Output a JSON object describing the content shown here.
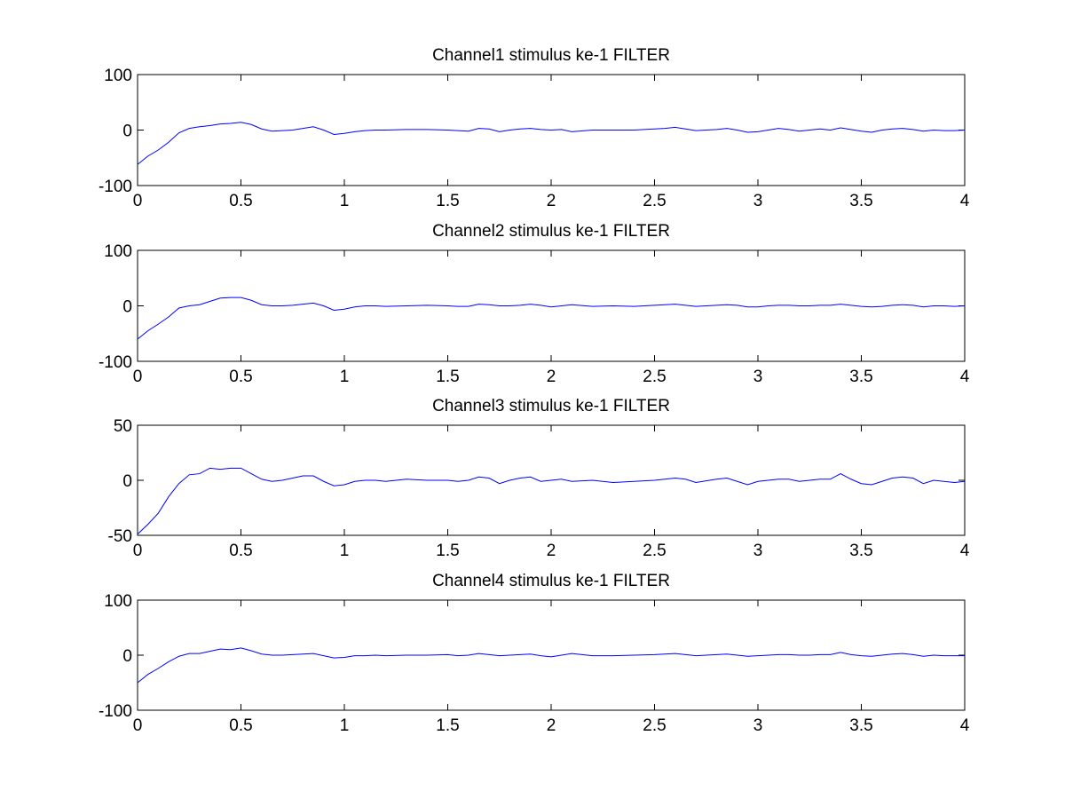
{
  "figure": {
    "background_color": "#ffffff"
  },
  "chart_data": [
    {
      "type": "line",
      "title": "Channel1 stimulus ke-1 FILTER",
      "xlabel": "",
      "ylabel": "",
      "xlim": [
        0,
        4
      ],
      "ylim": [
        -100,
        100
      ],
      "xticks": [
        0,
        0.5,
        1,
        1.5,
        2,
        2.5,
        3,
        3.5,
        4
      ],
      "xtick_labels": [
        "0",
        "0.5",
        "1",
        "1.5",
        "2",
        "2.5",
        "3",
        "3.5",
        "4"
      ],
      "yticks": [
        -100,
        0,
        100
      ],
      "ytick_labels": [
        "-100",
        "0",
        "100"
      ],
      "grid": false,
      "series": [
        {
          "color": "#0000ff",
          "x": [
            0,
            0.05,
            0.1,
            0.15,
            0.2,
            0.25,
            0.3,
            0.35,
            0.4,
            0.45,
            0.5,
            0.55,
            0.6,
            0.65,
            0.7,
            0.75,
            0.8,
            0.85,
            0.9,
            0.95,
            1.0,
            1.05,
            1.1,
            1.15,
            1.2,
            1.3,
            1.4,
            1.5,
            1.55,
            1.6,
            1.65,
            1.7,
            1.75,
            1.8,
            1.85,
            1.9,
            1.95,
            2.0,
            2.05,
            2.1,
            2.2,
            2.3,
            2.4,
            2.5,
            2.55,
            2.6,
            2.65,
            2.7,
            2.8,
            2.85,
            2.9,
            2.95,
            3.0,
            3.05,
            3.1,
            3.15,
            3.2,
            3.25,
            3.3,
            3.35,
            3.4,
            3.45,
            3.5,
            3.55,
            3.6,
            3.65,
            3.7,
            3.75,
            3.8,
            3.85,
            3.9,
            3.95,
            4.0
          ],
          "y": [
            -62,
            -47,
            -36,
            -22,
            -5,
            3,
            6,
            8,
            11,
            12,
            14,
            10,
            2,
            -2,
            -1,
            0,
            3,
            6,
            0,
            -8,
            -6,
            -3,
            -1,
            0,
            0,
            1,
            1,
            0,
            -1,
            -2,
            3,
            2,
            -3,
            0,
            2,
            3,
            1,
            0,
            1,
            -3,
            0,
            0,
            0,
            2,
            3,
            5,
            2,
            -1,
            1,
            3,
            0,
            -4,
            -3,
            0,
            3,
            1,
            -2,
            0,
            2,
            0,
            4,
            1,
            -2,
            -4,
            0,
            2,
            3,
            1,
            -2,
            0,
            -1,
            -1,
            0
          ]
        }
      ]
    },
    {
      "type": "line",
      "title": "Channel2 stimulus ke-1 FILTER",
      "xlabel": "",
      "ylabel": "",
      "xlim": [
        0,
        4
      ],
      "ylim": [
        -100,
        100
      ],
      "xticks": [
        0,
        0.5,
        1,
        1.5,
        2,
        2.5,
        3,
        3.5,
        4
      ],
      "xtick_labels": [
        "0",
        "0.5",
        "1",
        "1.5",
        "2",
        "2.5",
        "3",
        "3.5",
        "4"
      ],
      "yticks": [
        -100,
        0,
        100
      ],
      "ytick_labels": [
        "-100",
        "0",
        "100"
      ],
      "grid": false,
      "series": [
        {
          "color": "#0000ff",
          "x": [
            0,
            0.05,
            0.1,
            0.15,
            0.2,
            0.25,
            0.3,
            0.35,
            0.4,
            0.45,
            0.5,
            0.55,
            0.6,
            0.65,
            0.7,
            0.75,
            0.8,
            0.85,
            0.9,
            0.95,
            1.0,
            1.05,
            1.1,
            1.15,
            1.2,
            1.3,
            1.4,
            1.5,
            1.55,
            1.6,
            1.65,
            1.7,
            1.75,
            1.8,
            1.85,
            1.9,
            1.95,
            2.0,
            2.05,
            2.1,
            2.2,
            2.3,
            2.4,
            2.5,
            2.55,
            2.6,
            2.65,
            2.7,
            2.8,
            2.85,
            2.9,
            2.95,
            3.0,
            3.05,
            3.1,
            3.15,
            3.2,
            3.25,
            3.3,
            3.35,
            3.4,
            3.45,
            3.5,
            3.55,
            3.6,
            3.65,
            3.7,
            3.75,
            3.8,
            3.85,
            3.9,
            3.95,
            4.0
          ],
          "y": [
            -60,
            -45,
            -33,
            -20,
            -4,
            0,
            2,
            8,
            14,
            15,
            15,
            10,
            2,
            0,
            0,
            1,
            3,
            5,
            0,
            -8,
            -6,
            -2,
            0,
            0,
            -1,
            0,
            1,
            0,
            -1,
            -1,
            3,
            2,
            0,
            0,
            1,
            3,
            1,
            -2,
            0,
            2,
            -1,
            0,
            -1,
            1,
            2,
            3,
            1,
            -1,
            1,
            2,
            1,
            -2,
            -2,
            0,
            1,
            1,
            0,
            0,
            1,
            1,
            3,
            1,
            -1,
            -2,
            -1,
            1,
            2,
            1,
            -2,
            0,
            0,
            -1,
            0
          ]
        }
      ]
    },
    {
      "type": "line",
      "title": "Channel3 stimulus ke-1 FILTER",
      "xlabel": "",
      "ylabel": "",
      "xlim": [
        0,
        4
      ],
      "ylim": [
        -50,
        50
      ],
      "xticks": [
        0,
        0.5,
        1,
        1.5,
        2,
        2.5,
        3,
        3.5,
        4
      ],
      "xtick_labels": [
        "0",
        "0.5",
        "1",
        "1.5",
        "2",
        "2.5",
        "3",
        "3.5",
        "4"
      ],
      "yticks": [
        -50,
        0,
        50
      ],
      "ytick_labels": [
        "-50",
        "0",
        "50"
      ],
      "grid": false,
      "series": [
        {
          "color": "#0000ff",
          "x": [
            0,
            0.05,
            0.1,
            0.15,
            0.2,
            0.25,
            0.3,
            0.35,
            0.4,
            0.45,
            0.5,
            0.55,
            0.6,
            0.65,
            0.7,
            0.75,
            0.8,
            0.85,
            0.9,
            0.95,
            1.0,
            1.05,
            1.1,
            1.15,
            1.2,
            1.3,
            1.4,
            1.5,
            1.55,
            1.6,
            1.65,
            1.7,
            1.75,
            1.8,
            1.85,
            1.9,
            1.95,
            2.0,
            2.05,
            2.1,
            2.2,
            2.3,
            2.4,
            2.5,
            2.55,
            2.6,
            2.65,
            2.7,
            2.8,
            2.85,
            2.9,
            2.95,
            3.0,
            3.05,
            3.1,
            3.15,
            3.2,
            3.25,
            3.3,
            3.35,
            3.4,
            3.45,
            3.5,
            3.55,
            3.6,
            3.65,
            3.7,
            3.75,
            3.8,
            3.85,
            3.9,
            3.95,
            4.0
          ],
          "y": [
            -49,
            -40,
            -30,
            -15,
            -3,
            5,
            6,
            11,
            10,
            11,
            11,
            6,
            1,
            -1,
            0,
            2,
            4,
            4,
            -1,
            -5,
            -4,
            -1,
            0,
            0,
            -1,
            1,
            0,
            0,
            -1,
            0,
            3,
            2,
            -3,
            0,
            2,
            3,
            -1,
            0,
            1,
            -1,
            0,
            -2,
            -1,
            0,
            1,
            2,
            1,
            -2,
            1,
            2,
            -1,
            -4,
            -1,
            0,
            1,
            1,
            -1,
            0,
            1,
            1,
            6,
            1,
            -3,
            -4,
            -1,
            2,
            3,
            2,
            -3,
            0,
            -1,
            -2,
            -1
          ]
        }
      ]
    },
    {
      "type": "line",
      "title": "Channel4 stimulus ke-1 FILTER",
      "xlabel": "",
      "ylabel": "",
      "xlim": [
        0,
        4
      ],
      "ylim": [
        -100,
        100
      ],
      "xticks": [
        0,
        0.5,
        1,
        1.5,
        2,
        2.5,
        3,
        3.5,
        4
      ],
      "xtick_labels": [
        "0",
        "0.5",
        "1",
        "1.5",
        "2",
        "2.5",
        "3",
        "3.5",
        "4"
      ],
      "yticks": [
        -100,
        0,
        100
      ],
      "ytick_labels": [
        "-100",
        "0",
        "100"
      ],
      "grid": false,
      "series": [
        {
          "color": "#0000ff",
          "x": [
            0,
            0.05,
            0.1,
            0.15,
            0.2,
            0.25,
            0.3,
            0.35,
            0.4,
            0.45,
            0.5,
            0.55,
            0.6,
            0.65,
            0.7,
            0.75,
            0.8,
            0.85,
            0.9,
            0.95,
            1.0,
            1.05,
            1.1,
            1.15,
            1.2,
            1.3,
            1.4,
            1.5,
            1.55,
            1.6,
            1.65,
            1.7,
            1.75,
            1.8,
            1.85,
            1.9,
            1.95,
            2.0,
            2.05,
            2.1,
            2.2,
            2.3,
            2.4,
            2.5,
            2.55,
            2.6,
            2.65,
            2.7,
            2.8,
            2.85,
            2.9,
            2.95,
            3.0,
            3.05,
            3.1,
            3.15,
            3.2,
            3.25,
            3.3,
            3.35,
            3.4,
            3.45,
            3.5,
            3.55,
            3.6,
            3.65,
            3.7,
            3.75,
            3.8,
            3.85,
            3.9,
            3.95,
            4.0
          ],
          "y": [
            -50,
            -35,
            -24,
            -12,
            -2,
            3,
            3,
            7,
            11,
            10,
            13,
            8,
            2,
            0,
            0,
            1,
            2,
            3,
            -1,
            -5,
            -4,
            -1,
            -1,
            0,
            -1,
            0,
            0,
            1,
            -1,
            0,
            3,
            1,
            -1,
            0,
            1,
            2,
            -1,
            -3,
            0,
            3,
            -1,
            -1,
            0,
            1,
            2,
            3,
            1,
            -1,
            1,
            2,
            0,
            -2,
            -1,
            0,
            1,
            1,
            0,
            0,
            1,
            1,
            5,
            1,
            -1,
            -2,
            0,
            2,
            3,
            1,
            -2,
            0,
            -1,
            -1,
            -1
          ]
        }
      ]
    }
  ]
}
